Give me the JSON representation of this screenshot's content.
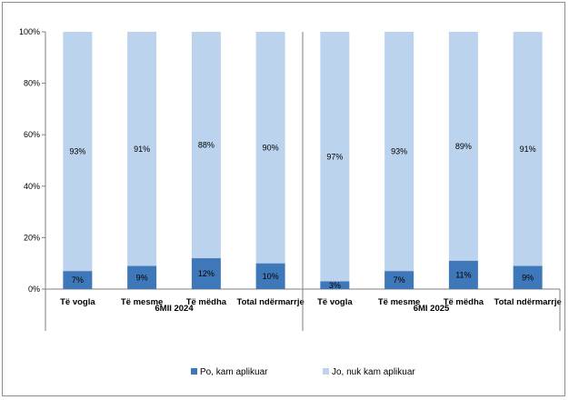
{
  "chart_data": {
    "type": "bar",
    "stacked": true,
    "percent": true,
    "groups": [
      {
        "label": "6MII 2024",
        "categories": [
          "Të vogla",
          "Të mesme",
          "Të mëdha",
          "Total ndërmarrje"
        ]
      },
      {
        "label": "6MI 2025",
        "categories": [
          "Të vogla",
          "Të mesme",
          "Të mëdha",
          "Total ndërmarrje"
        ]
      }
    ],
    "categories": [
      "Të vogla",
      "Të mesme",
      "Të mëdha",
      "Total ndërmarrje",
      "Të vogla",
      "Të mesme",
      "Të mëdha",
      "Total ndërmarrje"
    ],
    "series": [
      {
        "name": "Po, kam aplikuar",
        "color": "#3f78b8",
        "values": [
          7,
          9,
          12,
          10,
          3,
          7,
          11,
          9
        ],
        "labels": [
          "7%",
          "9%",
          "12%",
          "10%",
          "3%",
          "7%",
          "11%",
          "9%"
        ]
      },
      {
        "name": "Jo, nuk kam aplikuar",
        "color": "#bcd3ee",
        "values": [
          93,
          91,
          88,
          90,
          97,
          93,
          89,
          91
        ],
        "labels": [
          "93%",
          "91%",
          "88%",
          "90%",
          "97%",
          "93%",
          "89%",
          "91%"
        ]
      }
    ],
    "ylim": [
      0,
      100
    ],
    "yticks": [
      "0%",
      "20%",
      "40%",
      "60%",
      "80%",
      "100%"
    ],
    "grid": false,
    "legend_position": "bottom"
  }
}
